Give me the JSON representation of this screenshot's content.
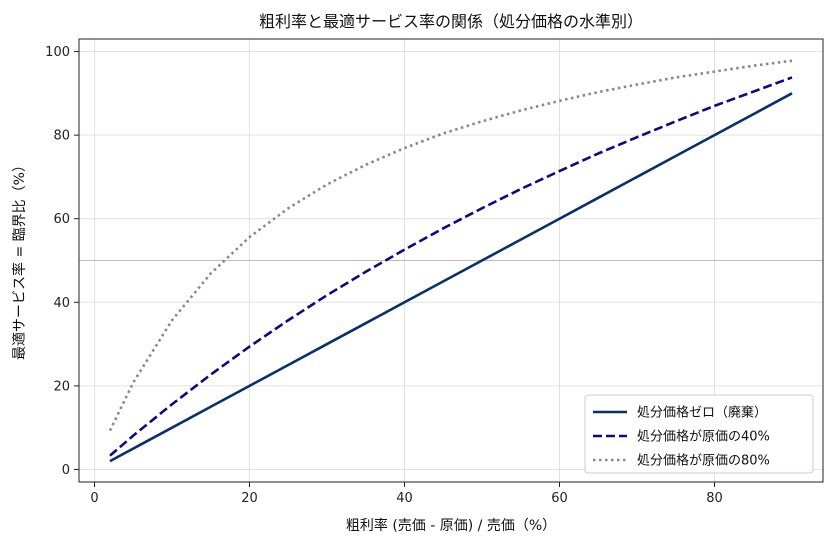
{
  "chart_data": {
    "type": "line",
    "title": "粗利率と最適サービス率の関係（処分価格の水準別）",
    "xlabel": "粗利率 (売価 - 原価) / 売価（%）",
    "ylabel": "最適サービス率 = 臨界比（%）",
    "xlim": [
      -2,
      94
    ],
    "ylim": [
      -3,
      103
    ],
    "xticks": [
      0,
      20,
      40,
      60,
      80
    ],
    "yticks": [
      0,
      20,
      40,
      60,
      80,
      100
    ],
    "grid": true,
    "reference_line_y": 50,
    "legend_position": "lower-right",
    "x": [
      2,
      5,
      10,
      15,
      20,
      25,
      30,
      35,
      40,
      45,
      50,
      55,
      60,
      65,
      70,
      75,
      80,
      85,
      90
    ],
    "series": [
      {
        "name": "処分価格ゼロ（廃棄）",
        "style": "solid",
        "color": "#0b2f6b",
        "values": [
          2,
          5,
          10,
          15,
          20,
          25,
          30,
          35,
          40,
          45,
          50,
          55,
          60,
          65,
          70,
          75,
          80,
          85,
          90
        ]
      },
      {
        "name": "処分価格が原価の40%",
        "style": "dashed",
        "color": "#0a0a82",
        "values": [
          3.3,
          8.1,
          15.6,
          22.7,
          29.4,
          35.7,
          41.7,
          47.3,
          52.6,
          57.7,
          62.5,
          67.1,
          71.4,
          75.6,
          79.5,
          83.3,
          87.0,
          90.4,
          93.8
        ]
      },
      {
        "name": "処分価格が原価の80%",
        "style": "dotted",
        "color": "#888888",
        "values": [
          9.3,
          20.8,
          35.7,
          46.9,
          55.6,
          62.5,
          68.2,
          72.9,
          76.9,
          80.4,
          83.3,
          85.9,
          88.2,
          90.3,
          92.1,
          93.8,
          95.2,
          96.6,
          97.8
        ]
      }
    ]
  }
}
